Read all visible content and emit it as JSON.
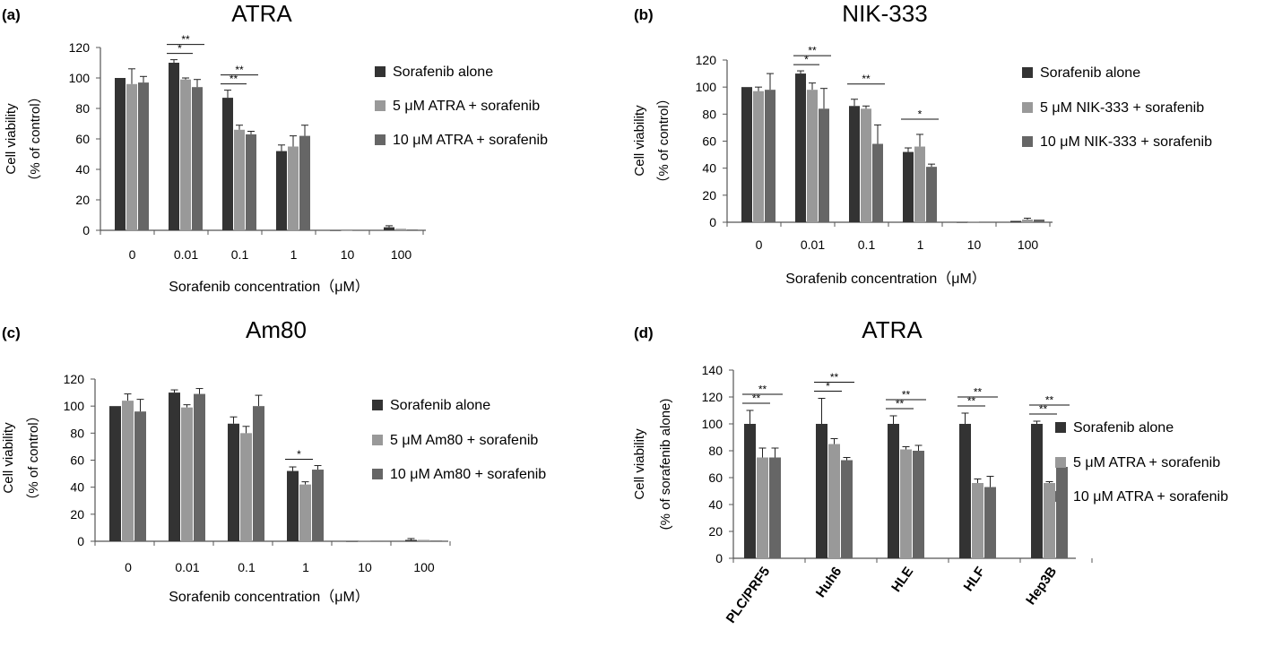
{
  "colors": {
    "series": [
      "#333333",
      "#999999",
      "#666666"
    ],
    "axis": "#555555",
    "text": "#000000"
  },
  "chart_data": [
    {
      "type": "bar",
      "panel_label": "(a)",
      "title": "ATRA",
      "xlabel": "Sorafenib concentration（μM）",
      "ylabel": [
        "Cell viability",
        "（% of control）"
      ],
      "categories": [
        "0",
        "0.01",
        "0.1",
        "1",
        "10",
        "100"
      ],
      "ylim": [
        0,
        120
      ],
      "yticks": [
        0,
        20,
        40,
        60,
        80,
        100,
        120
      ],
      "series": [
        {
          "name": "Sorafenib alone",
          "values": [
            100,
            110,
            87,
            52,
            0,
            2
          ],
          "errors": [
            0,
            2,
            5,
            4,
            0,
            1
          ]
        },
        {
          "name": "5 μM ATRA + sorafenib",
          "values": [
            96,
            99,
            66,
            55,
            0,
            1
          ],
          "errors": [
            10,
            1,
            3,
            7,
            0,
            0
          ]
        },
        {
          "name": "10 μM ATRA + sorafenib",
          "values": [
            97,
            94,
            63,
            62,
            0,
            0.5
          ],
          "errors": [
            4,
            5,
            2,
            7,
            0,
            0
          ]
        }
      ],
      "significance": [
        {
          "cat": 1,
          "to": 1,
          "label": "*"
        },
        {
          "cat": 1,
          "to": 2,
          "label": "**"
        },
        {
          "cat": 2,
          "to": 1,
          "label": "**"
        },
        {
          "cat": 2,
          "to": 2,
          "label": "**"
        }
      ]
    },
    {
      "type": "bar",
      "panel_label": "(b)",
      "title": "NIK-333",
      "xlabel": "Sorafenib concentration（μM）",
      "ylabel": [
        "Cell viability",
        "（% of control）"
      ],
      "categories": [
        "0",
        "0.01",
        "0.1",
        "1",
        "10",
        "100"
      ],
      "ylim": [
        0,
        120
      ],
      "yticks": [
        0,
        20,
        40,
        60,
        80,
        100,
        120
      ],
      "series": [
        {
          "name": "Sorafenib alone",
          "values": [
            100,
            110,
            86,
            52,
            0,
            1
          ],
          "errors": [
            0,
            2,
            5,
            3,
            0,
            0
          ]
        },
        {
          "name": "5 μM NIK-333  + sorafenib",
          "values": [
            97,
            98,
            84,
            56,
            0.5,
            2
          ],
          "errors": [
            3,
            5,
            2,
            9,
            0,
            1
          ]
        },
        {
          "name": "10 μM NIK-333 + sorafenib",
          "values": [
            98,
            84,
            58,
            41,
            0,
            2
          ],
          "errors": [
            12,
            15,
            14,
            2,
            0,
            0
          ]
        }
      ],
      "significance": [
        {
          "cat": 1,
          "to": 1,
          "label": "*"
        },
        {
          "cat": 1,
          "to": 2,
          "label": "**"
        },
        {
          "cat": 2,
          "to": 2,
          "label": "**"
        },
        {
          "cat": 3,
          "to": 2,
          "label": "*"
        }
      ]
    },
    {
      "type": "bar",
      "panel_label": "(c)",
      "title": "Am80",
      "xlabel": "Sorafenib concentration（μM）",
      "ylabel": [
        "Cell viability",
        "（% of control）"
      ],
      "categories": [
        "0",
        "0.01",
        "0.1",
        "1",
        "10",
        "100"
      ],
      "ylim": [
        0,
        120
      ],
      "yticks": [
        0,
        20,
        40,
        60,
        80,
        100,
        120
      ],
      "series": [
        {
          "name": "Sorafenib alone",
          "values": [
            100,
            110,
            87,
            52,
            0,
            1
          ],
          "errors": [
            0,
            2,
            5,
            3,
            0,
            1
          ]
        },
        {
          "name": "5 μM Am80 + sorafenib",
          "values": [
            104,
            99,
            80,
            42,
            0.5,
            1
          ],
          "errors": [
            5,
            2,
            5,
            2,
            0,
            0
          ]
        },
        {
          "name": "10 μM Am80 + sorafenib",
          "values": [
            96,
            109,
            100,
            53,
            0,
            0.5
          ],
          "errors": [
            9,
            4,
            8,
            3,
            0,
            0
          ]
        }
      ],
      "significance": [
        {
          "cat": 3,
          "to": 1,
          "label": "*"
        }
      ]
    },
    {
      "type": "bar",
      "panel_label": "(d)",
      "title": "ATRA",
      "xlabel": "",
      "ylabel": [
        "Cell viability",
        "(% of  sorafenib  alone)"
      ],
      "categories": [
        "PLC/PRF5",
        "Huh6",
        "HLE",
        "HLF",
        "Hep3B"
      ],
      "ylim": [
        0,
        140
      ],
      "yticks": [
        0,
        20,
        40,
        60,
        80,
        100,
        120,
        140
      ],
      "series": [
        {
          "name": "Sorafenib alone",
          "values": [
            100,
            100,
            100,
            100,
            100
          ],
          "errors": [
            10,
            19,
            6,
            8,
            2
          ]
        },
        {
          "name": "5 μM ATRA + sorafenib",
          "values": [
            75,
            85,
            81,
            56,
            56
          ],
          "errors": [
            7,
            4,
            2,
            3,
            1
          ]
        },
        {
          "name": "10 μM ATRA + sorafenib",
          "values": [
            75,
            73,
            80,
            53,
            68
          ],
          "errors": [
            7,
            2,
            4,
            8,
            2
          ]
        }
      ],
      "significance": [
        {
          "cat": 0,
          "to": 1,
          "label": "**"
        },
        {
          "cat": 0,
          "to": 2,
          "label": "**"
        },
        {
          "cat": 1,
          "to": 1,
          "label": "*"
        },
        {
          "cat": 1,
          "to": 2,
          "label": "**"
        },
        {
          "cat": 2,
          "to": 1,
          "label": "**"
        },
        {
          "cat": 2,
          "to": 2,
          "label": "**"
        },
        {
          "cat": 3,
          "to": 1,
          "label": "**"
        },
        {
          "cat": 3,
          "to": 2,
          "label": "**"
        },
        {
          "cat": 4,
          "to": 1,
          "label": "**"
        },
        {
          "cat": 4,
          "to": 2,
          "label": "**"
        }
      ]
    }
  ]
}
